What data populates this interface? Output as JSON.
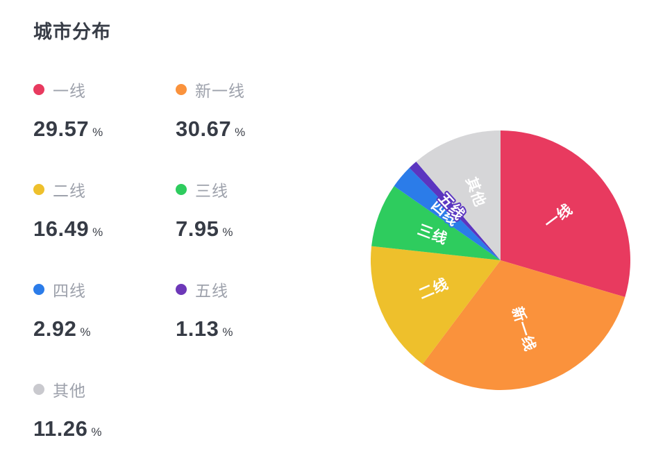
{
  "page": {
    "title": "城市分布"
  },
  "legend": {
    "unit": "%",
    "items": [
      {
        "label": "一线",
        "value": "29.57",
        "color": "#e83a5f"
      },
      {
        "label": "新一线",
        "value": "30.67",
        "color": "#fa923c"
      },
      {
        "label": "二线",
        "value": "16.49",
        "color": "#eec02c"
      },
      {
        "label": "三线",
        "value": "7.95",
        "color": "#2ecc5e"
      },
      {
        "label": "四线",
        "value": "2.92",
        "color": "#2b7ce9"
      },
      {
        "label": "五线",
        "value": "1.13",
        "color": "#6d38b8"
      },
      {
        "label": "其他",
        "value": "11.26",
        "color": "#c9c9ce"
      }
    ]
  },
  "chart_data": {
    "type": "pie",
    "title": "城市分布",
    "categories": [
      "一线",
      "新一线",
      "二线",
      "三线",
      "四线",
      "五线",
      "其他"
    ],
    "values": [
      29.57,
      30.67,
      16.49,
      7.95,
      2.92,
      1.13,
      11.26
    ],
    "unit": "%",
    "colors": [
      "#e83a5f",
      "#fa923c",
      "#eec02c",
      "#2ecc5e",
      "#2b7ce9",
      "#5b35c0",
      "#d6d6d8"
    ],
    "start_angle": "top",
    "direction": "clockwise",
    "legend_position": "left",
    "label_position": "inside",
    "label_color": "#ffffff",
    "label_outline": [
      false,
      false,
      false,
      false,
      true,
      true,
      false
    ],
    "label_radius_ratio": 0.56
  }
}
